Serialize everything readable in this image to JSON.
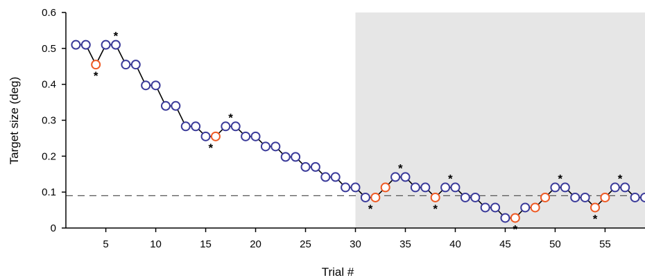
{
  "chart_data": {
    "type": "line",
    "title": "",
    "xlabel": "Trial #",
    "ylabel": "Target size (deg)",
    "xlim": [
      1,
      59
    ],
    "ylim": [
      0,
      0.6
    ],
    "x_ticks": [
      5,
      10,
      15,
      20,
      25,
      30,
      35,
      40,
      45,
      50,
      55
    ],
    "y_ticks": [
      0,
      0.1,
      0.2,
      0.3,
      0.4,
      0.5,
      0.6
    ],
    "y_tick_labels": [
      "0",
      "0.1",
      "0.2",
      "0.3",
      "0.4",
      "0.5",
      "0.6"
    ],
    "x_tick_labels": [
      "5",
      "10",
      "15",
      "20",
      "25",
      "30",
      "35",
      "40",
      "45",
      "50",
      "55"
    ],
    "shaded_region": {
      "x_start": 30,
      "x_end": 59,
      "color": "#e6e6e6"
    },
    "reference_line": {
      "y": 0.09,
      "style": "dashed"
    },
    "colors": {
      "normal": "#3b3b9a",
      "highlight": "#ee5a24",
      "line": "#000000"
    },
    "star_text": "*",
    "grid": false,
    "series": [
      {
        "x": [
          2,
          3,
          4,
          5,
          6,
          7,
          8,
          9,
          10,
          11,
          12,
          13,
          14,
          15,
          16,
          17,
          18,
          19,
          20,
          21,
          22,
          23,
          24,
          25,
          26,
          27,
          28,
          29,
          30,
          31,
          32,
          33,
          34,
          35,
          36,
          37,
          38,
          39,
          40,
          41,
          42,
          43,
          44,
          45,
          46,
          47,
          48,
          49,
          50,
          51,
          52,
          53,
          54,
          55,
          56,
          57,
          58,
          59
        ],
        "y": [
          0.51,
          0.51,
          0.455,
          0.51,
          0.51,
          0.455,
          0.455,
          0.397,
          0.397,
          0.34,
          0.34,
          0.283,
          0.283,
          0.255,
          0.255,
          0.283,
          0.283,
          0.255,
          0.255,
          0.227,
          0.227,
          0.198,
          0.198,
          0.17,
          0.17,
          0.142,
          0.142,
          0.113,
          0.113,
          0.085,
          0.085,
          0.113,
          0.142,
          0.142,
          0.113,
          0.113,
          0.085,
          0.113,
          0.113,
          0.085,
          0.085,
          0.057,
          0.057,
          0.028,
          0.028,
          0.057,
          0.057,
          0.085,
          0.113,
          0.113,
          0.085,
          0.085,
          0.057,
          0.085,
          0.113,
          0.113,
          0.085,
          0.085
        ],
        "highlight": [
          4,
          16,
          32,
          33,
          38,
          46,
          48,
          49,
          54,
          55
        ],
        "stars_above": [
          6,
          17.5,
          34.5,
          39.5,
          50.5,
          56.5
        ],
        "stars_below": [
          4,
          15.5,
          31.5,
          38,
          46,
          54
        ]
      }
    ]
  }
}
